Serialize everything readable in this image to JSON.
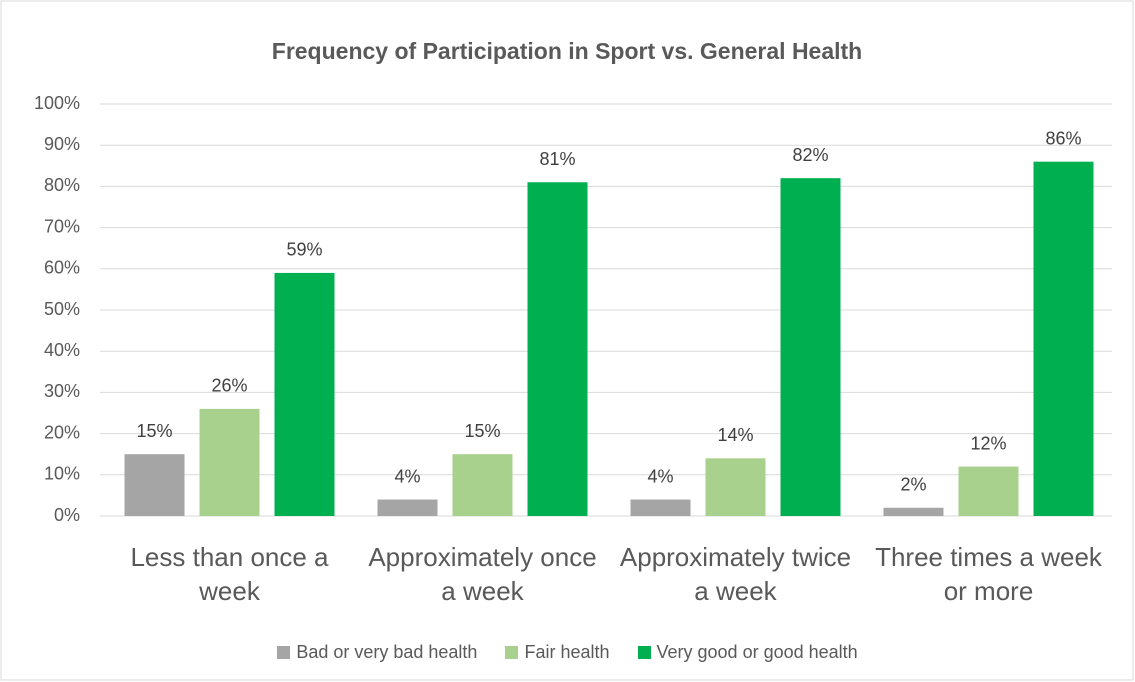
{
  "chart_data": {
    "type": "bar",
    "title": "Frequency of Participation in Sport vs. General Health",
    "categories": [
      "Less than once a week",
      "Approximately once a week",
      "Approximately twice a week",
      "Three times a week or more"
    ],
    "series": [
      {
        "name": "Bad or very bad health",
        "color": "#a5a5a5",
        "values": [
          15,
          4,
          4,
          2
        ],
        "value_labels": [
          "15%",
          "4%",
          "4%",
          "2%"
        ]
      },
      {
        "name": "Fair health",
        "color": "#a9d18e",
        "values": [
          26,
          15,
          14,
          12
        ],
        "value_labels": [
          "26%",
          "15%",
          "14%",
          "12%"
        ]
      },
      {
        "name": "Very good or good health",
        "color": "#00b050",
        "values": [
          59,
          81,
          82,
          86
        ],
        "value_labels": [
          "59%",
          "81%",
          "82%",
          "86%"
        ]
      }
    ],
    "ylim": [
      0,
      100
    ],
    "yticks": [
      {
        "value": 0,
        "label": "0%"
      },
      {
        "value": 10,
        "label": "10%"
      },
      {
        "value": 20,
        "label": "20%"
      },
      {
        "value": 30,
        "label": "30%"
      },
      {
        "value": 40,
        "label": "40%"
      },
      {
        "value": 50,
        "label": "50%"
      },
      {
        "value": 60,
        "label": "60%"
      },
      {
        "value": 70,
        "label": "70%"
      },
      {
        "value": 80,
        "label": "80%"
      },
      {
        "value": 90,
        "label": "90%"
      },
      {
        "value": 100,
        "label": "100%"
      }
    ],
    "grid": true,
    "legend": "bottom"
  }
}
